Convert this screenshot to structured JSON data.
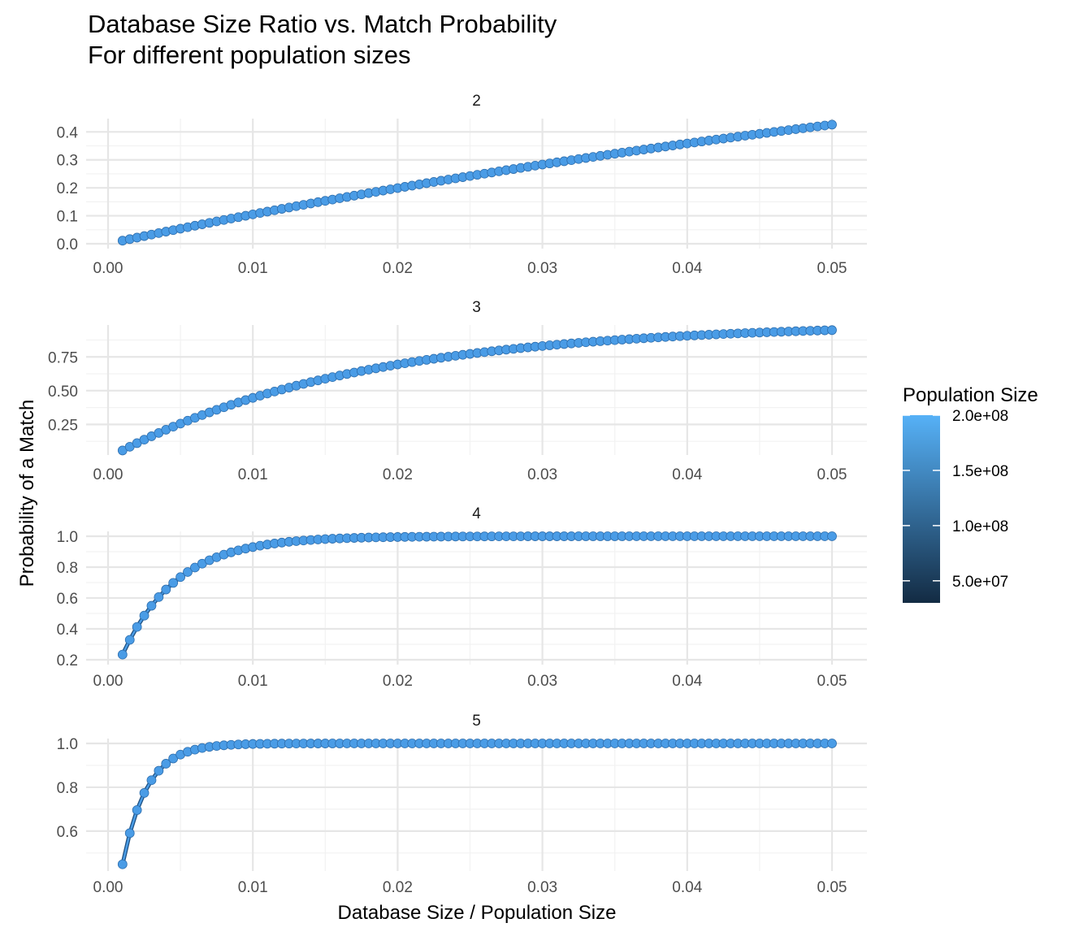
{
  "chart_data": {
    "type": "line",
    "title": "Database Size Ratio vs. Match Probability",
    "subtitle": "For different population sizes",
    "xlabel": "Database Size / Population Size",
    "ylabel": "Probability of a Match",
    "x_ticks": [
      "0.00",
      "0.01",
      "0.02",
      "0.03",
      "0.04",
      "0.05"
    ],
    "x_range": [
      0.001,
      0.05
    ],
    "x_step": 0.0005,
    "legend": {
      "title": "Population Size",
      "ticks": [
        "2.0e+08",
        "1.5e+08",
        "1.0e+08",
        "5.0e+07"
      ],
      "tick_values": [
        200000000,
        150000000,
        100000000,
        50000000
      ],
      "range": [
        30000000,
        200000000
      ],
      "color_low": "#132B43",
      "color_high": "#56B1F7",
      "placement": "right"
    },
    "series_color": "#4a9ce6",
    "point_color": "#4a9ce6",
    "facets": [
      {
        "label": "2",
        "k": 2,
        "ylim": [
          0,
          0.43
        ],
        "y_ticks": [
          0.0,
          0.1,
          0.2,
          0.3,
          0.4
        ],
        "y_tick_labels": [
          "0.0",
          "0.1",
          "0.2",
          "0.3",
          "0.4"
        ],
        "model": "1 - exp(-11.1 * x)"
      },
      {
        "label": "3",
        "k": 3,
        "ylim": [
          0.06,
          0.95
        ],
        "y_ticks": [
          0.25,
          0.5,
          0.75
        ],
        "y_tick_labels": [
          "0.25",
          "0.50",
          "0.75"
        ],
        "model": "1 - exp(-59.2 * x)"
      },
      {
        "label": "4",
        "k": 4,
        "ylim": [
          0.2,
          1.0
        ],
        "y_ticks": [
          0.2,
          0.4,
          0.6,
          0.8,
          1.0
        ],
        "y_tick_labels": [
          "0.2",
          "0.4",
          "0.6",
          "0.8",
          "1.0"
        ],
        "model": "1 - exp(-266 * x)"
      },
      {
        "label": "5",
        "k": 5,
        "ylim": [
          0.44,
          1.0
        ],
        "y_ticks": [
          0.6,
          0.8,
          1.0
        ],
        "y_tick_labels": [
          "0.6",
          "0.8",
          "1.0"
        ],
        "model": "1 - exp(-595 * x)"
      }
    ]
  }
}
